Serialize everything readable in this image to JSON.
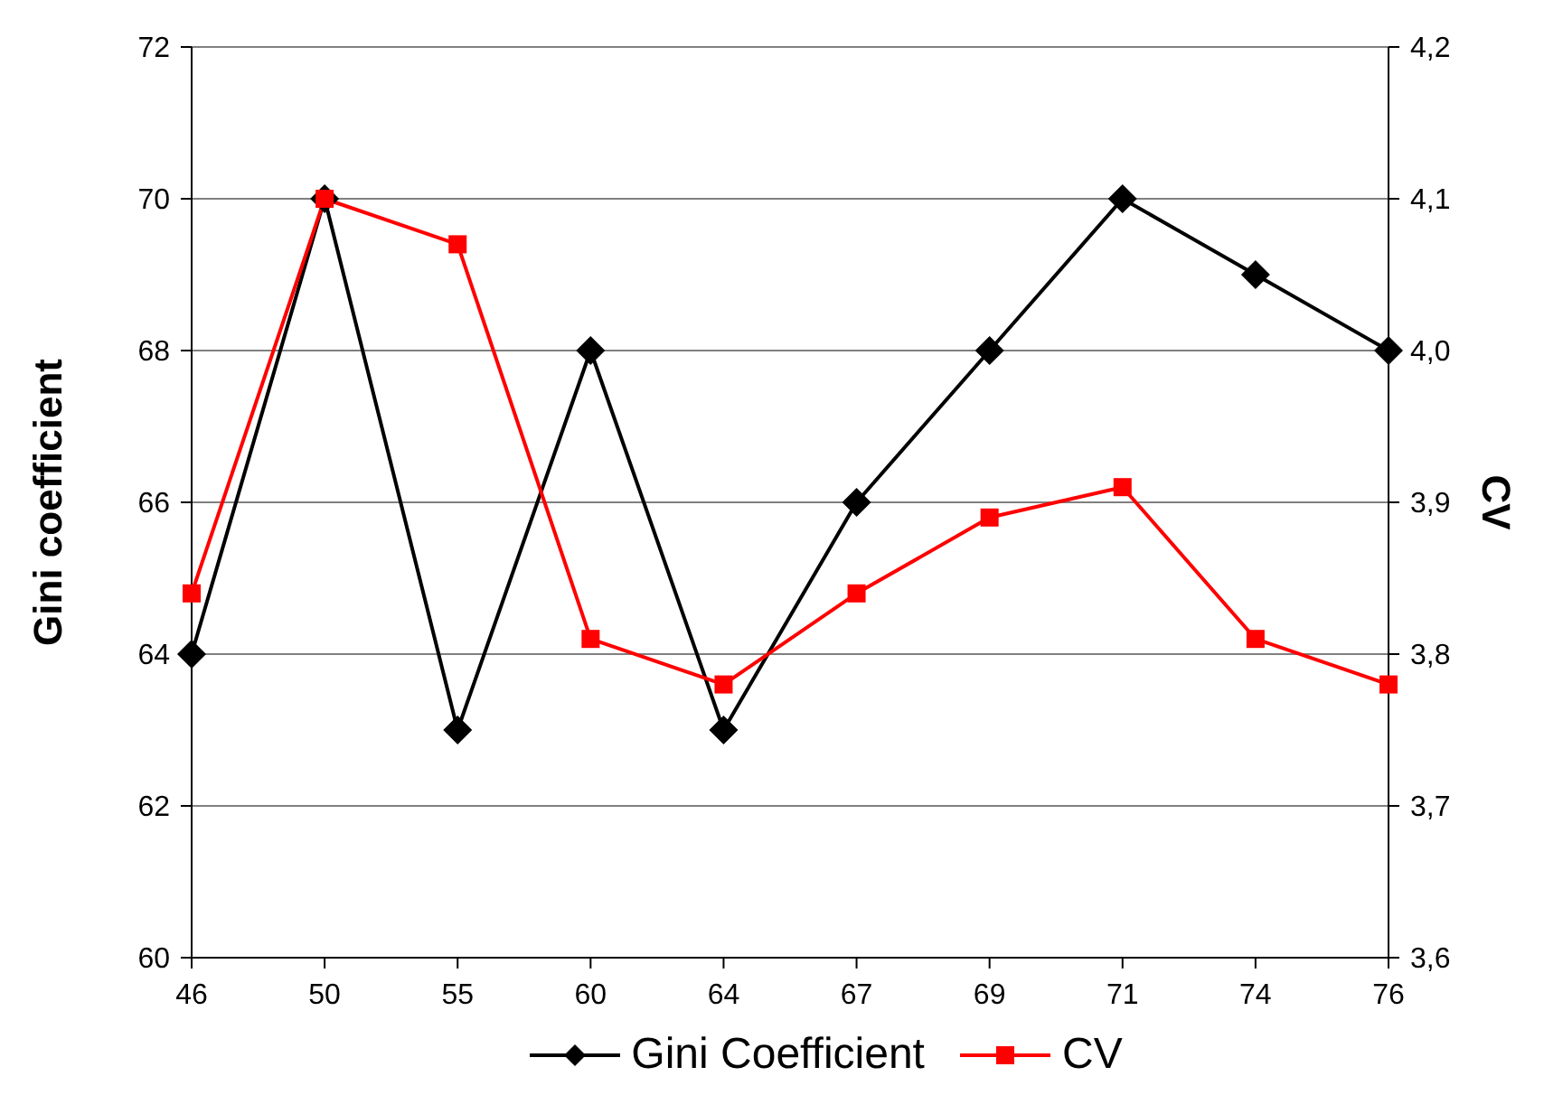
{
  "chart_data": {
    "type": "line",
    "categories": [
      "46",
      "50",
      "55",
      "60",
      "64",
      "67",
      "69",
      "71",
      "74",
      "76"
    ],
    "ylabel": "Gini coefficient",
    "y2label": "CV",
    "ylim": [
      60,
      72
    ],
    "yticks": [
      60,
      62,
      64,
      66,
      68,
      70,
      72
    ],
    "y2lim": [
      3.6,
      4.2
    ],
    "y2ticks": [
      {
        "value": 3.6,
        "label": "3,6"
      },
      {
        "value": 3.7,
        "label": "3,7"
      },
      {
        "value": 3.8,
        "label": "3,8"
      },
      {
        "value": 3.9,
        "label": "3,9"
      },
      {
        "value": 4.0,
        "label": "4,0"
      },
      {
        "value": 4.1,
        "label": "4,1"
      },
      {
        "value": 4.2,
        "label": "4,2"
      }
    ],
    "grid": "y",
    "legend": "bottom",
    "series": [
      {
        "name": "Gini Coefficient",
        "color": "#000000",
        "marker": "diamond",
        "values": [
          64,
          70,
          63,
          68,
          63,
          66,
          68,
          70,
          69,
          68
        ]
      },
      {
        "name": "CV",
        "color": "#ff0000",
        "marker": "square",
        "axis": "y2",
        "values": [
          3.84,
          4.1,
          4.07,
          3.81,
          3.78,
          3.84,
          3.89,
          3.91,
          3.81,
          3.78
        ]
      }
    ]
  }
}
